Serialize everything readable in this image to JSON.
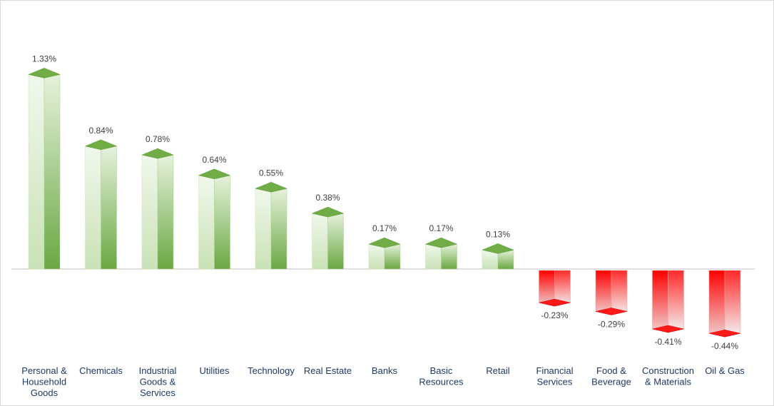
{
  "chart_data": {
    "type": "bar",
    "style": "3d-column",
    "categories": [
      "Personal & Household Goods",
      "Chemicals",
      "Industrial Goods & Services",
      "Utilities",
      "Technology",
      "Real Estate",
      "Banks",
      "Basic Resources",
      "Retail",
      "Financial Services",
      "Food & Beverage",
      "Construction & Materials",
      "Oil & Gas"
    ],
    "category_lines": [
      [
        "Personal &",
        "Household",
        "Goods"
      ],
      [
        "Chemicals"
      ],
      [
        "Industrial",
        "Goods &",
        "Services"
      ],
      [
        "Utilities"
      ],
      [
        "Technology"
      ],
      [
        "Real Estate"
      ],
      [
        "Banks"
      ],
      [
        "Basic",
        "Resources"
      ],
      [
        "Retail"
      ],
      [
        "Financial",
        "Services"
      ],
      [
        "Food &",
        "Beverage"
      ],
      [
        "Construction",
        "& Materials"
      ],
      [
        "Oil & Gas"
      ]
    ],
    "values": [
      1.33,
      0.84,
      0.78,
      0.64,
      0.55,
      0.38,
      0.17,
      0.17,
      0.13,
      -0.23,
      -0.29,
      -0.41,
      -0.44
    ],
    "data_labels": [
      "1.33%",
      "0.84%",
      "0.78%",
      "0.64%",
      "0.55%",
      "0.38%",
      "0.17%",
      "0.17%",
      "0.13%",
      "-0.23%",
      "-0.29%",
      "-0.41%",
      "-0.44%"
    ],
    "unit": "%",
    "title": "",
    "xlabel": "",
    "ylabel": "",
    "ylim": [
      -0.6,
      1.45
    ],
    "grid": false,
    "legend": "none",
    "colors": {
      "positive": "#70ad47",
      "positive_dark": "#5a9a34",
      "positive_light": "#eaf4e2",
      "negative": "#ff0000",
      "negative_dark": "#e01010",
      "negative_light": "#f2f2f2",
      "axis": "#bfbfbf",
      "category_text": "#1f3864",
      "value_text": "#404040"
    }
  }
}
